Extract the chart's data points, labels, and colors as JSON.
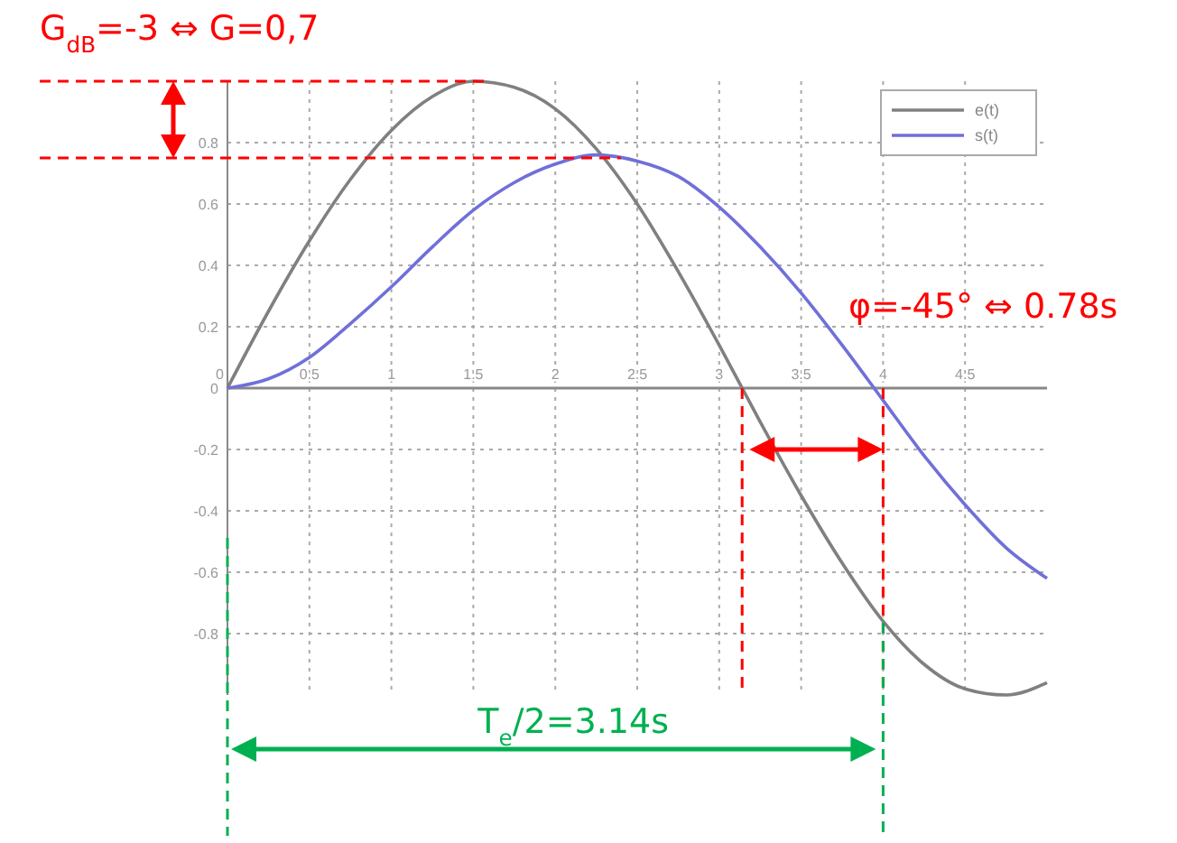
{
  "chart_data": {
    "type": "line",
    "x": [
      0,
      0.25,
      0.5,
      0.75,
      1,
      1.25,
      1.5,
      1.75,
      2,
      2.25,
      2.5,
      2.75,
      3,
      3.25,
      3.5,
      3.75,
      4,
      4.25,
      4.5,
      4.75,
      5
    ],
    "series": [
      {
        "name": "e(t)",
        "color": "#808080",
        "values": [
          0,
          0.25,
          0.48,
          0.68,
          0.84,
          0.95,
          1.0,
          0.98,
          0.91,
          0.78,
          0.6,
          0.38,
          0.14,
          -0.11,
          -0.35,
          -0.57,
          -0.76,
          -0.9,
          -0.98,
          -1.0,
          -0.96
        ]
      },
      {
        "name": "s(t)",
        "color": "#7070d8",
        "values": [
          0,
          0.03,
          0.1,
          0.21,
          0.33,
          0.46,
          0.58,
          0.67,
          0.73,
          0.76,
          0.74,
          0.69,
          0.59,
          0.46,
          0.31,
          0.14,
          -0.04,
          -0.22,
          -0.38,
          -0.52,
          -0.62
        ]
      }
    ],
    "xlim": [
      0,
      5
    ],
    "ylim": [
      -1,
      1
    ],
    "xticks": [
      0,
      0.5,
      1,
      1.5,
      2,
      2.5,
      3,
      3.5,
      4,
      4.5
    ],
    "yticks": [
      -0.8,
      -0.6,
      -0.4,
      -0.2,
      0,
      0.2,
      0.4,
      0.6,
      0.8
    ],
    "grid": true,
    "legend": "top right",
    "marker": "none",
    "line_style": "solid",
    "ref_lines": [
      {
        "axis": "y",
        "value": 1.0,
        "color": "#ff0000",
        "line_style": "dashed"
      },
      {
        "axis": "y",
        "value": 0.75,
        "color": "#ff0000",
        "line_style": "dashed"
      },
      {
        "axis": "x",
        "value": 3.14,
        "color": "#ff0000",
        "line_style": "dashed"
      },
      {
        "axis": "x",
        "value": 4,
        "color": "#ff0000",
        "line_style": "dashed"
      },
      {
        "axis": "x",
        "value": 0,
        "color": "#00b050",
        "line_style": "dashed"
      },
      {
        "axis": "x",
        "value": 4,
        "color": "#00b050",
        "line_style": "dashed"
      }
    ],
    "annotations": [
      "G$_{dB}$=-3 ⇔ G=0,7",
      "φ=-45° ⇔ 0.78s",
      "T$_{e}$/2=3.14s"
    ]
  }
}
